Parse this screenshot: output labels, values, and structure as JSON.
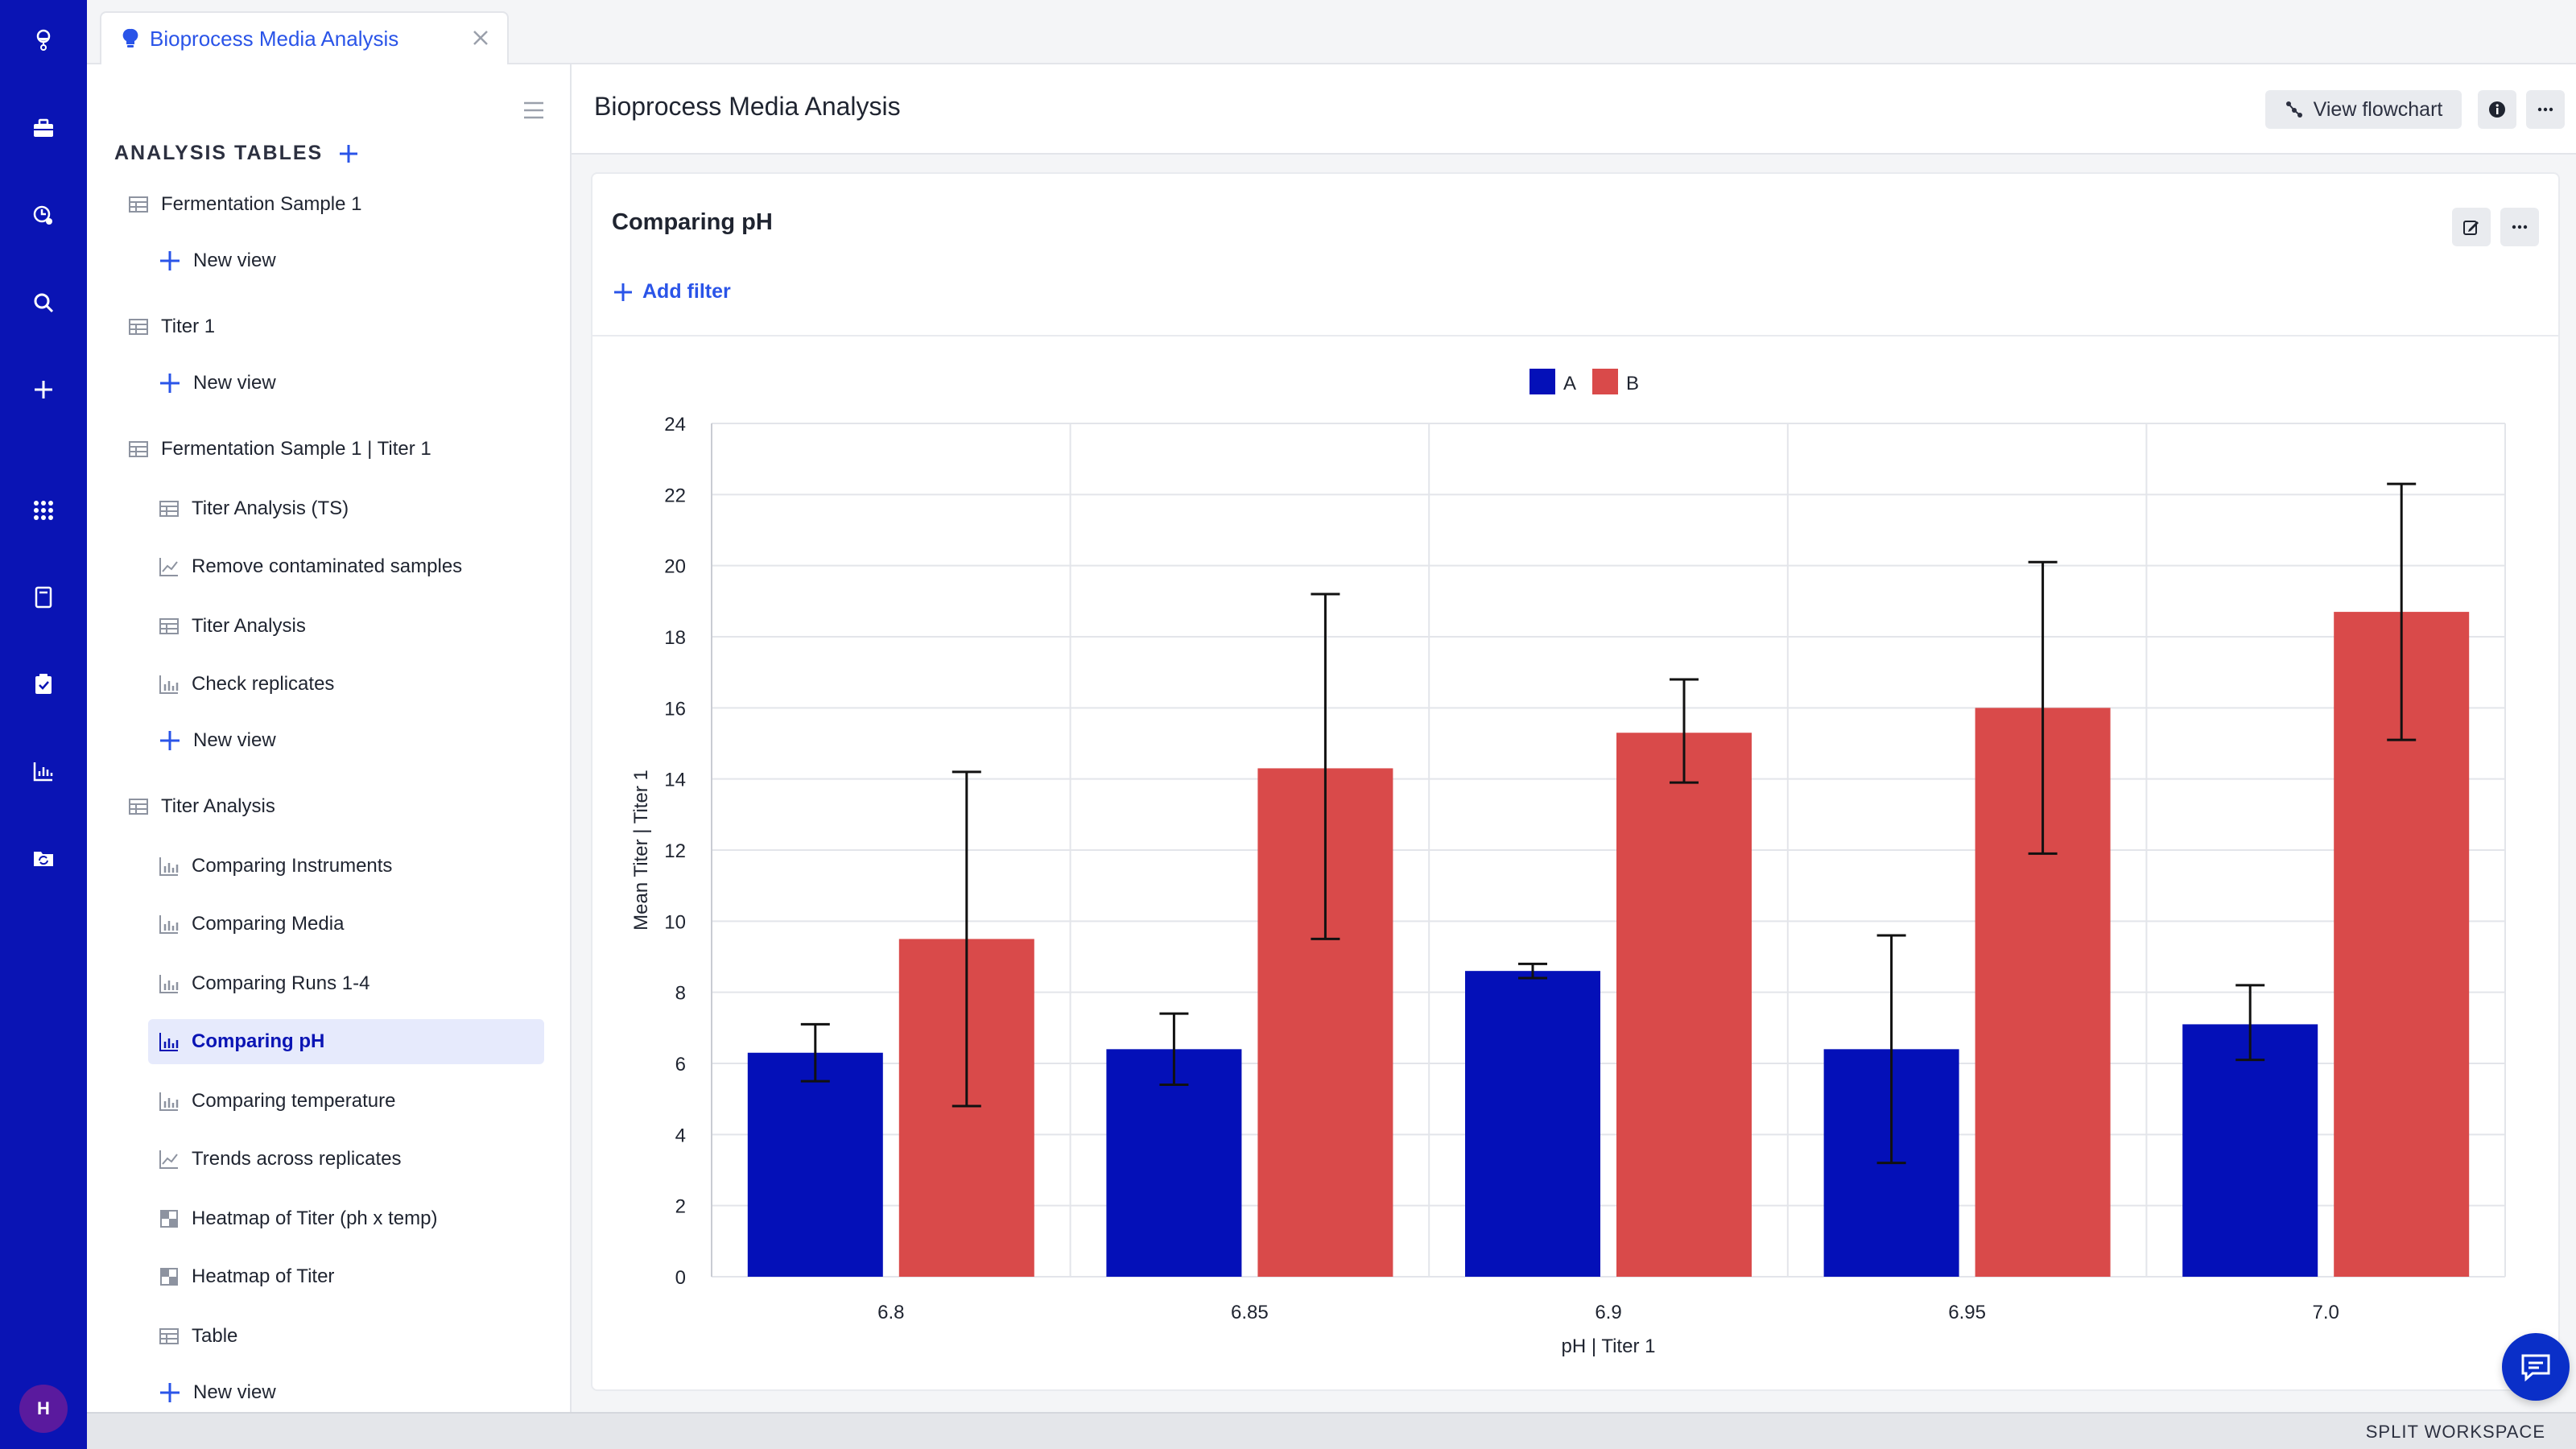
{
  "tab": {
    "label": "Bioprocess Media Analysis"
  },
  "sidebar": {
    "section_title": "ANALYSIS TABLES",
    "items": [
      {
        "label": "Fermentation Sample 1",
        "icon": "table-icon",
        "level": 0
      },
      {
        "label": "New view",
        "icon": "plus-icon",
        "level": 1
      },
      {
        "label": "Titer 1",
        "icon": "table-icon",
        "level": 0
      },
      {
        "label": "New view",
        "icon": "plus-icon",
        "level": 1
      },
      {
        "label": "Fermentation Sample 1 | Titer 1",
        "icon": "table-icon",
        "level": 0
      },
      {
        "label": "Titer Analysis (TS)",
        "icon": "table-icon",
        "level": 1
      },
      {
        "label": "Remove contaminated samples",
        "icon": "line-chart-icon",
        "level": 1
      },
      {
        "label": "Titer Analysis",
        "icon": "table-icon",
        "level": 1
      },
      {
        "label": "Check replicates",
        "icon": "bar-chart-icon",
        "level": 1
      },
      {
        "label": "New view",
        "icon": "plus-icon",
        "level": 1
      },
      {
        "label": "Titer Analysis",
        "icon": "table-icon",
        "level": 0
      },
      {
        "label": "Comparing Instruments",
        "icon": "bar-chart-icon",
        "level": 1
      },
      {
        "label": "Comparing Media",
        "icon": "bar-chart-icon",
        "level": 1
      },
      {
        "label": "Comparing Runs 1-4",
        "icon": "bar-chart-icon",
        "level": 1
      },
      {
        "label": "Comparing pH",
        "icon": "bar-chart-icon",
        "level": 1,
        "active": true
      },
      {
        "label": "Comparing temperature",
        "icon": "bar-chart-icon",
        "level": 1
      },
      {
        "label": "Trends across replicates",
        "icon": "line-chart-icon",
        "level": 1
      },
      {
        "label": "Heatmap of Titer (ph x temp)",
        "icon": "heatmap-icon",
        "level": 1
      },
      {
        "label": "Heatmap of Titer",
        "icon": "heatmap-icon",
        "level": 1
      },
      {
        "label": "Table",
        "icon": "table-icon",
        "level": 1
      },
      {
        "label": "New view",
        "icon": "plus-icon",
        "level": 1
      }
    ]
  },
  "header": {
    "title": "Bioprocess Media Analysis",
    "flowchart_label": "View flowchart"
  },
  "card": {
    "title": "Comparing pH",
    "add_filter_label": "Add filter"
  },
  "user": {
    "initial": "H"
  },
  "bottombar": {
    "split_label": "SPLIT WORKSPACE"
  },
  "colors": {
    "accent": "#2a54e8",
    "rail": "#0a14b4",
    "series_a": "#0410b8",
    "series_b": "#d94a4a"
  },
  "chart_data": {
    "type": "bar",
    "categories": [
      "6.8",
      "6.85",
      "6.9",
      "6.95",
      "7.0"
    ],
    "series": [
      {
        "name": "A",
        "color": "#0410b8",
        "values": [
          6.3,
          6.4,
          8.6,
          6.4,
          7.1
        ],
        "err_low": [
          5.5,
          5.4,
          8.4,
          3.2,
          6.1
        ],
        "err_high": [
          7.1,
          7.4,
          8.8,
          9.6,
          8.2
        ]
      },
      {
        "name": "B",
        "color": "#d94a4a",
        "values": [
          9.5,
          14.3,
          15.3,
          16.0,
          18.7
        ],
        "err_low": [
          4.8,
          9.5,
          13.9,
          11.9,
          15.1
        ],
        "err_high": [
          14.2,
          19.2,
          16.8,
          20.1,
          22.3
        ]
      }
    ],
    "xlabel": "pH | Titer 1",
    "ylabel": "Mean Titer | Titer 1",
    "ylim": [
      0,
      24
    ],
    "yticks": [
      "0",
      "2",
      "4",
      "6",
      "8",
      "10",
      "12",
      "14",
      "16",
      "18",
      "20",
      "22",
      "24"
    ],
    "legend_position": "top-center",
    "grid": true
  }
}
